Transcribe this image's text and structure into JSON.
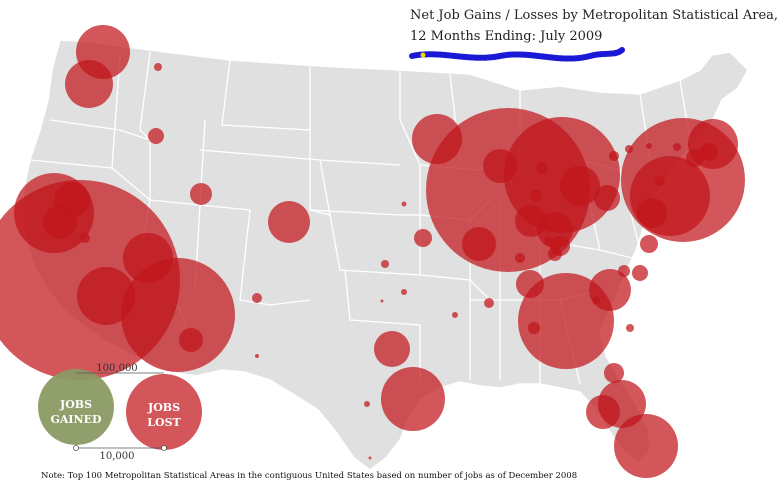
{
  "title": {
    "line1": "Net Job Gains / Losses by  Metropolitan Statistical Area,",
    "line2": "12 Months Ending:  July  2009"
  },
  "legend": {
    "gained_line1": "JOBS",
    "gained_line2": "GAINED",
    "lost_line1": "JOBS",
    "lost_line2": "LOST",
    "scale_large": "100,000",
    "scale_small": "10,000"
  },
  "note": "Note: Top 100 Metropolitan Statistical Areas in the contiguous United States based on number of jobs as of December 2008",
  "colors": {
    "land": "#e0e0e0",
    "borders": "#ffffff",
    "jobs_lost": "#c0151a",
    "jobs_gained": "#8a9a64",
    "scribble": "#1a1ad6"
  }
}
